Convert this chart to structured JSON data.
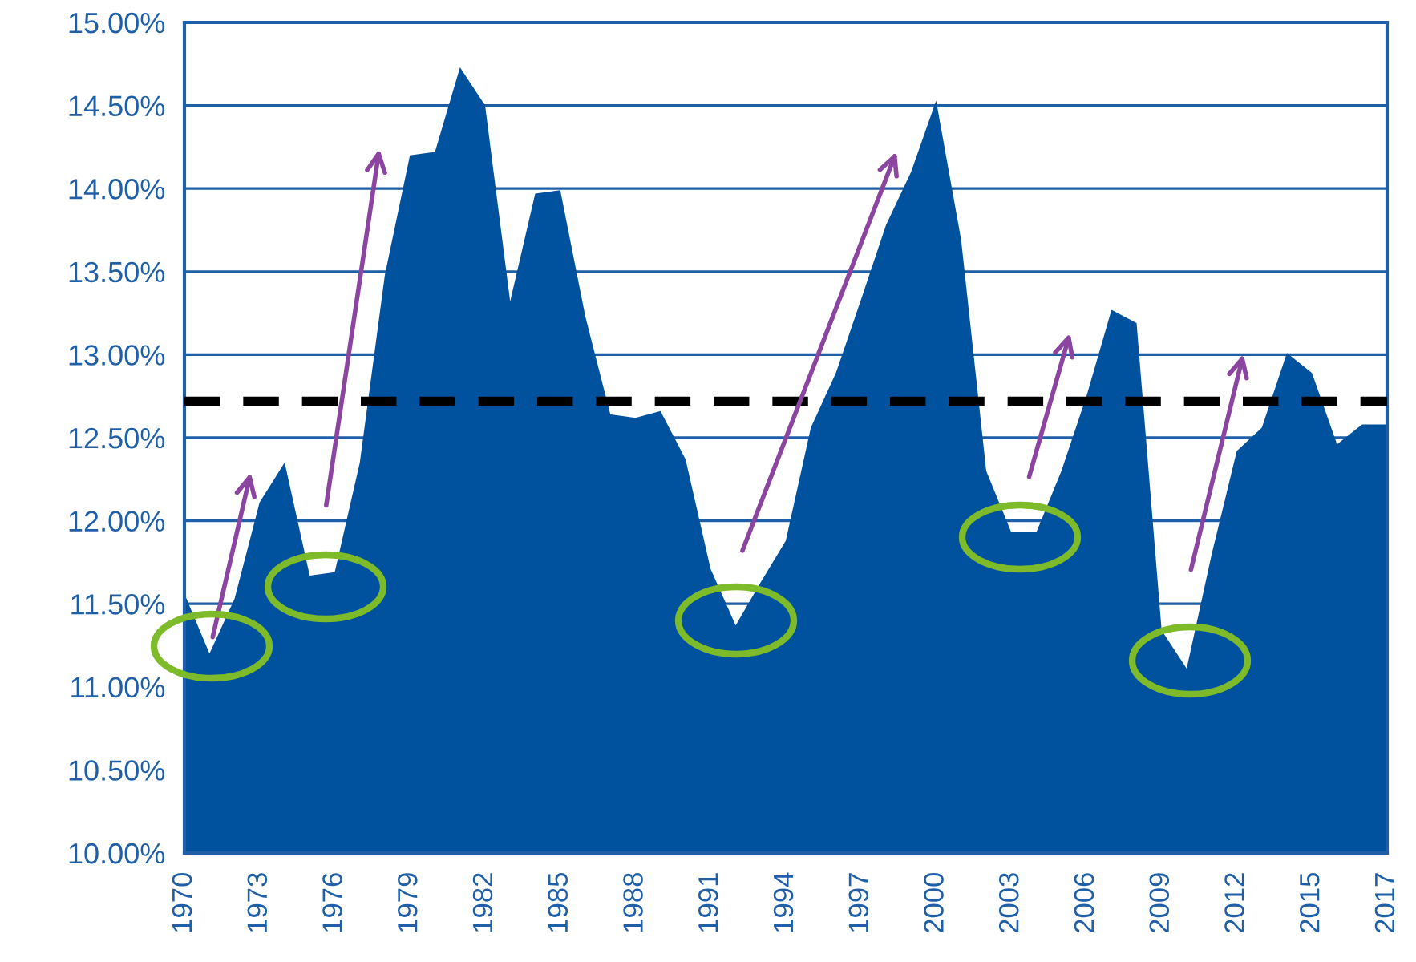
{
  "chart_data": {
    "type": "area",
    "categories": [
      "1970",
      null,
      null,
      "1973",
      null,
      null,
      "1976",
      null,
      null,
      "1979",
      null,
      null,
      "1982",
      null,
      null,
      "1985",
      null,
      null,
      "1988",
      null,
      null,
      "1991",
      null,
      null,
      "1994",
      null,
      null,
      "1997",
      null,
      null,
      "2000",
      null,
      null,
      "2003",
      null,
      null,
      "2006",
      null,
      null,
      "2009",
      null,
      null,
      "2012",
      null,
      null,
      "2015",
      null,
      null,
      "2017"
    ],
    "series": [
      {
        "color": "#00519e",
        "values": [
          11.56,
          11.2,
          11.53,
          12.11,
          12.35,
          11.67,
          11.69,
          12.35,
          13.48,
          14.2,
          14.22,
          14.73,
          14.5,
          13.32,
          13.97,
          13.99,
          13.23,
          12.64,
          12.62,
          12.66,
          12.37,
          11.71,
          11.37,
          11.63,
          11.88,
          12.56,
          12.89,
          13.33,
          13.78,
          14.1,
          14.53,
          13.69,
          12.3,
          11.93,
          11.93,
          12.3,
          12.75,
          13.27,
          13.19,
          11.34,
          11.11,
          11.8,
          12.42,
          12.56,
          13.01,
          12.89,
          12.46,
          12.58,
          12.58
        ]
      }
    ],
    "ylim": [
      10,
      15
    ],
    "yticks": [
      {
        "value": 10,
        "label": "10.00%"
      },
      {
        "value": 10.5,
        "label": "10.50%"
      },
      {
        "value": 11,
        "label": "11.00%"
      },
      {
        "value": 11.5,
        "label": "11.50%"
      },
      {
        "value": 12,
        "label": "12.00%"
      },
      {
        "value": 12.5,
        "label": "12.50%"
      },
      {
        "value": 13,
        "label": "13.00%"
      },
      {
        "value": 13.5,
        "label": "13.50%"
      },
      {
        "value": 14,
        "label": "14.00%"
      },
      {
        "value": 14.5,
        "label": "14.50%"
      },
      {
        "value": 15,
        "label": "15.00%"
      }
    ],
    "grid": "y",
    "legend": false,
    "ref_lines": [
      {
        "axis": "y",
        "value": 12.72,
        "color": "#000000",
        "line_style": "dashed"
      }
    ]
  }
}
